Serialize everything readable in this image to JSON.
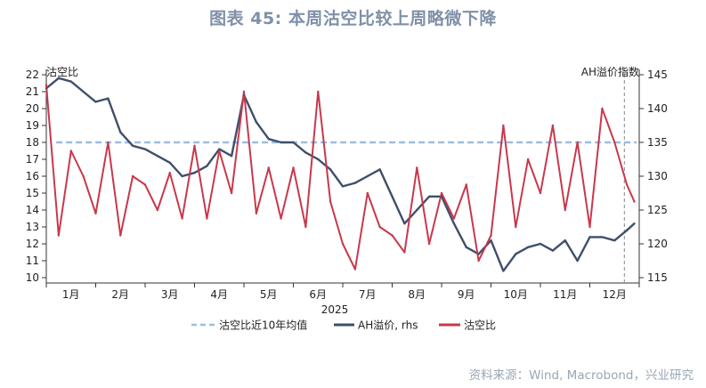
{
  "title": "图表 45: 本周沽空比较上周略微下降",
  "source": "资料来源：Wind, Macrobond，兴业研究",
  "colors": {
    "short_ratio": "#c8384c",
    "ah_premium": "#3f4f6b",
    "avg10y": "#9dbde0",
    "vline": "#9a9a9a"
  },
  "chart_data": {
    "type": "line",
    "xlabel": "2025",
    "left_axis_label": "沽空比",
    "right_axis_label": "AH溢价指数",
    "x_ticks": [
      "1月",
      "2月",
      "3月",
      "4月",
      "5月",
      "6月",
      "7月",
      "8月",
      "9月",
      "10月",
      "11月",
      "12月"
    ],
    "x_range": [
      0,
      12
    ],
    "ylim_left": [
      10,
      22
    ],
    "yticks_left": [
      10,
      11,
      12,
      13,
      14,
      15,
      16,
      17,
      18,
      19,
      20,
      21,
      22
    ],
    "ylim_right": [
      115,
      145
    ],
    "yticks_right": [
      115,
      120,
      125,
      130,
      135,
      140,
      145
    ],
    "vertical_marker_x": 11.7,
    "legend": [
      "沽空比近10年均值",
      "AH溢价, rhs",
      "沽空比"
    ],
    "series": [
      {
        "name": "沽空比",
        "axis": "left",
        "x": [
          0.0,
          0.25,
          0.5,
          0.75,
          1.0,
          1.25,
          1.5,
          1.75,
          2.0,
          2.25,
          2.5,
          2.75,
          3.0,
          3.25,
          3.5,
          3.75,
          4.0,
          4.25,
          4.5,
          4.75,
          5.0,
          5.25,
          5.5,
          5.75,
          6.0,
          6.25,
          6.5,
          6.75,
          7.0,
          7.25,
          7.5,
          7.75,
          8.0,
          8.25,
          8.5,
          8.75,
          9.0,
          9.25,
          9.5,
          9.75,
          10.0,
          10.25,
          10.5,
          10.75,
          11.0,
          11.25,
          11.5,
          11.75,
          11.9
        ],
        "values": [
          21.4,
          12.5,
          17.5,
          16.0,
          13.8,
          18.0,
          12.5,
          16.0,
          15.5,
          14.0,
          16.2,
          13.5,
          17.8,
          13.5,
          17.5,
          15.0,
          21.0,
          13.8,
          16.5,
          13.5,
          16.5,
          13.0,
          21.0,
          14.5,
          12.0,
          10.5,
          15.0,
          13.0,
          12.5,
          11.5,
          16.5,
          12.0,
          15.0,
          13.5,
          15.5,
          11.0,
          12.5,
          19.0,
          13.0,
          17.0,
          15.0,
          19.0,
          14.0,
          18.0,
          13.0,
          20.0,
          18.0,
          15.5,
          14.5
        ]
      },
      {
        "name": "AH溢价, rhs",
        "axis": "right",
        "x": [
          0.0,
          0.25,
          0.5,
          0.75,
          1.0,
          1.25,
          1.5,
          1.75,
          2.0,
          2.25,
          2.5,
          2.75,
          3.0,
          3.25,
          3.5,
          3.75,
          4.0,
          4.25,
          4.5,
          4.75,
          5.0,
          5.25,
          5.5,
          5.75,
          6.0,
          6.25,
          6.5,
          6.75,
          7.0,
          7.25,
          7.5,
          7.75,
          8.0,
          8.25,
          8.5,
          8.75,
          9.0,
          9.25,
          9.5,
          9.75,
          10.0,
          10.25,
          10.5,
          10.75,
          11.0,
          11.25,
          11.5,
          11.75,
          11.9
        ],
        "values": [
          143.0,
          144.5,
          144.0,
          142.5,
          141.0,
          141.5,
          136.5,
          134.5,
          134.0,
          133.0,
          132.0,
          130.0,
          130.5,
          131.5,
          134.0,
          133.0,
          142.0,
          138.0,
          135.5,
          135.0,
          135.0,
          133.5,
          132.5,
          131.0,
          128.5,
          129.0,
          130.0,
          131.0,
          127.0,
          123.0,
          125.0,
          127.0,
          127.0,
          123.0,
          119.5,
          118.5,
          120.5,
          116.0,
          118.5,
          119.5,
          120.0,
          119.0,
          120.5,
          117.5,
          121.0,
          121.0,
          120.5,
          122.0,
          123.0
        ]
      },
      {
        "name": "沽空比近10年均值",
        "axis": "left",
        "x": [
          0.2,
          11.95
        ],
        "values": [
          18.0,
          18.0
        ]
      }
    ]
  }
}
